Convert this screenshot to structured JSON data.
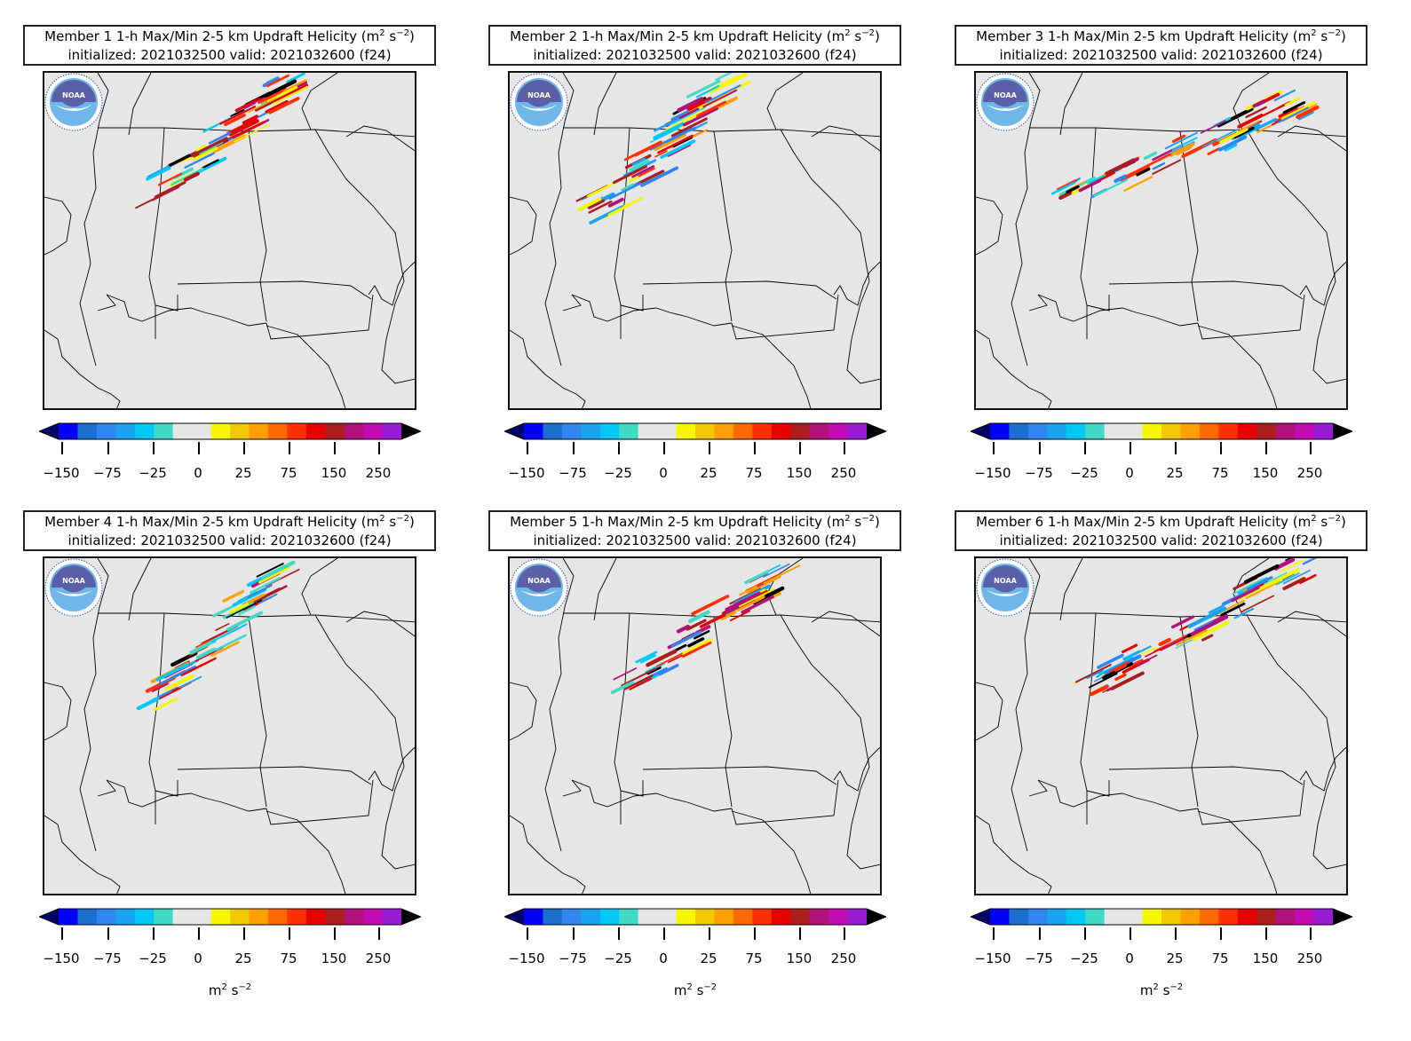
{
  "panels": [
    {
      "title_line1": "Member 1 1-h Max/Min 2-5 km Updraft Helicity (m",
      "title_line2": "initialized: 2021032500 valid: 2021032600 (f24)"
    },
    {
      "title_line1": "Member 2 1-h Max/Min 2-5 km Updraft Helicity (m",
      "title_line2": "initialized: 2021032500 valid: 2021032600 (f24)"
    },
    {
      "title_line1": "Member 3 1-h Max/Min 2-5 km Updraft Helicity (m",
      "title_line2": "initialized: 2021032500 valid: 2021032600 (f24)"
    },
    {
      "title_line1": "Member 4 1-h Max/Min 2-5 km Updraft Helicity (m",
      "title_line2": "initialized: 2021032500 valid: 2021032600 (f24)"
    },
    {
      "title_line1": "Member 5 1-h Max/Min 2-5 km Updraft Helicity (m",
      "title_line2": "initialized: 2021032500 valid: 2021032600 (f24)"
    },
    {
      "title_line1": "Member 6 1-h Max/Min 2-5 km Updraft Helicity (m",
      "title_line2": "initialized: 2021032500 valid: 2021032600 (f24)"
    }
  ],
  "title_unit_suffix": {
    "sq": "2",
    "mid": " s",
    "exp": "−2",
    "close": ")"
  },
  "colorbar": {
    "ticks": [
      "−150",
      "−75",
      "−25",
      "0",
      "25",
      "75",
      "150",
      "250"
    ],
    "colors": [
      "#0000ff",
      "#1c6fce",
      "#2f86ef",
      "#1aa3f0",
      "#00c8f5",
      "#3fd9c4",
      "#e6e6e6",
      "#e6e6e6",
      "#f6f600",
      "#f2c800",
      "#ffa000",
      "#ff6a00",
      "#ff3000",
      "#e60000",
      "#aa1e1e",
      "#b0127a",
      "#c30ab3",
      "#9a1bd6"
    ],
    "under_color": "#000066",
    "over_color": "#000000",
    "unit_base": "m",
    "unit_sq": "2",
    "unit_mid": " s",
    "unit_exp": "−2"
  },
  "logo_text": "NOAA"
}
